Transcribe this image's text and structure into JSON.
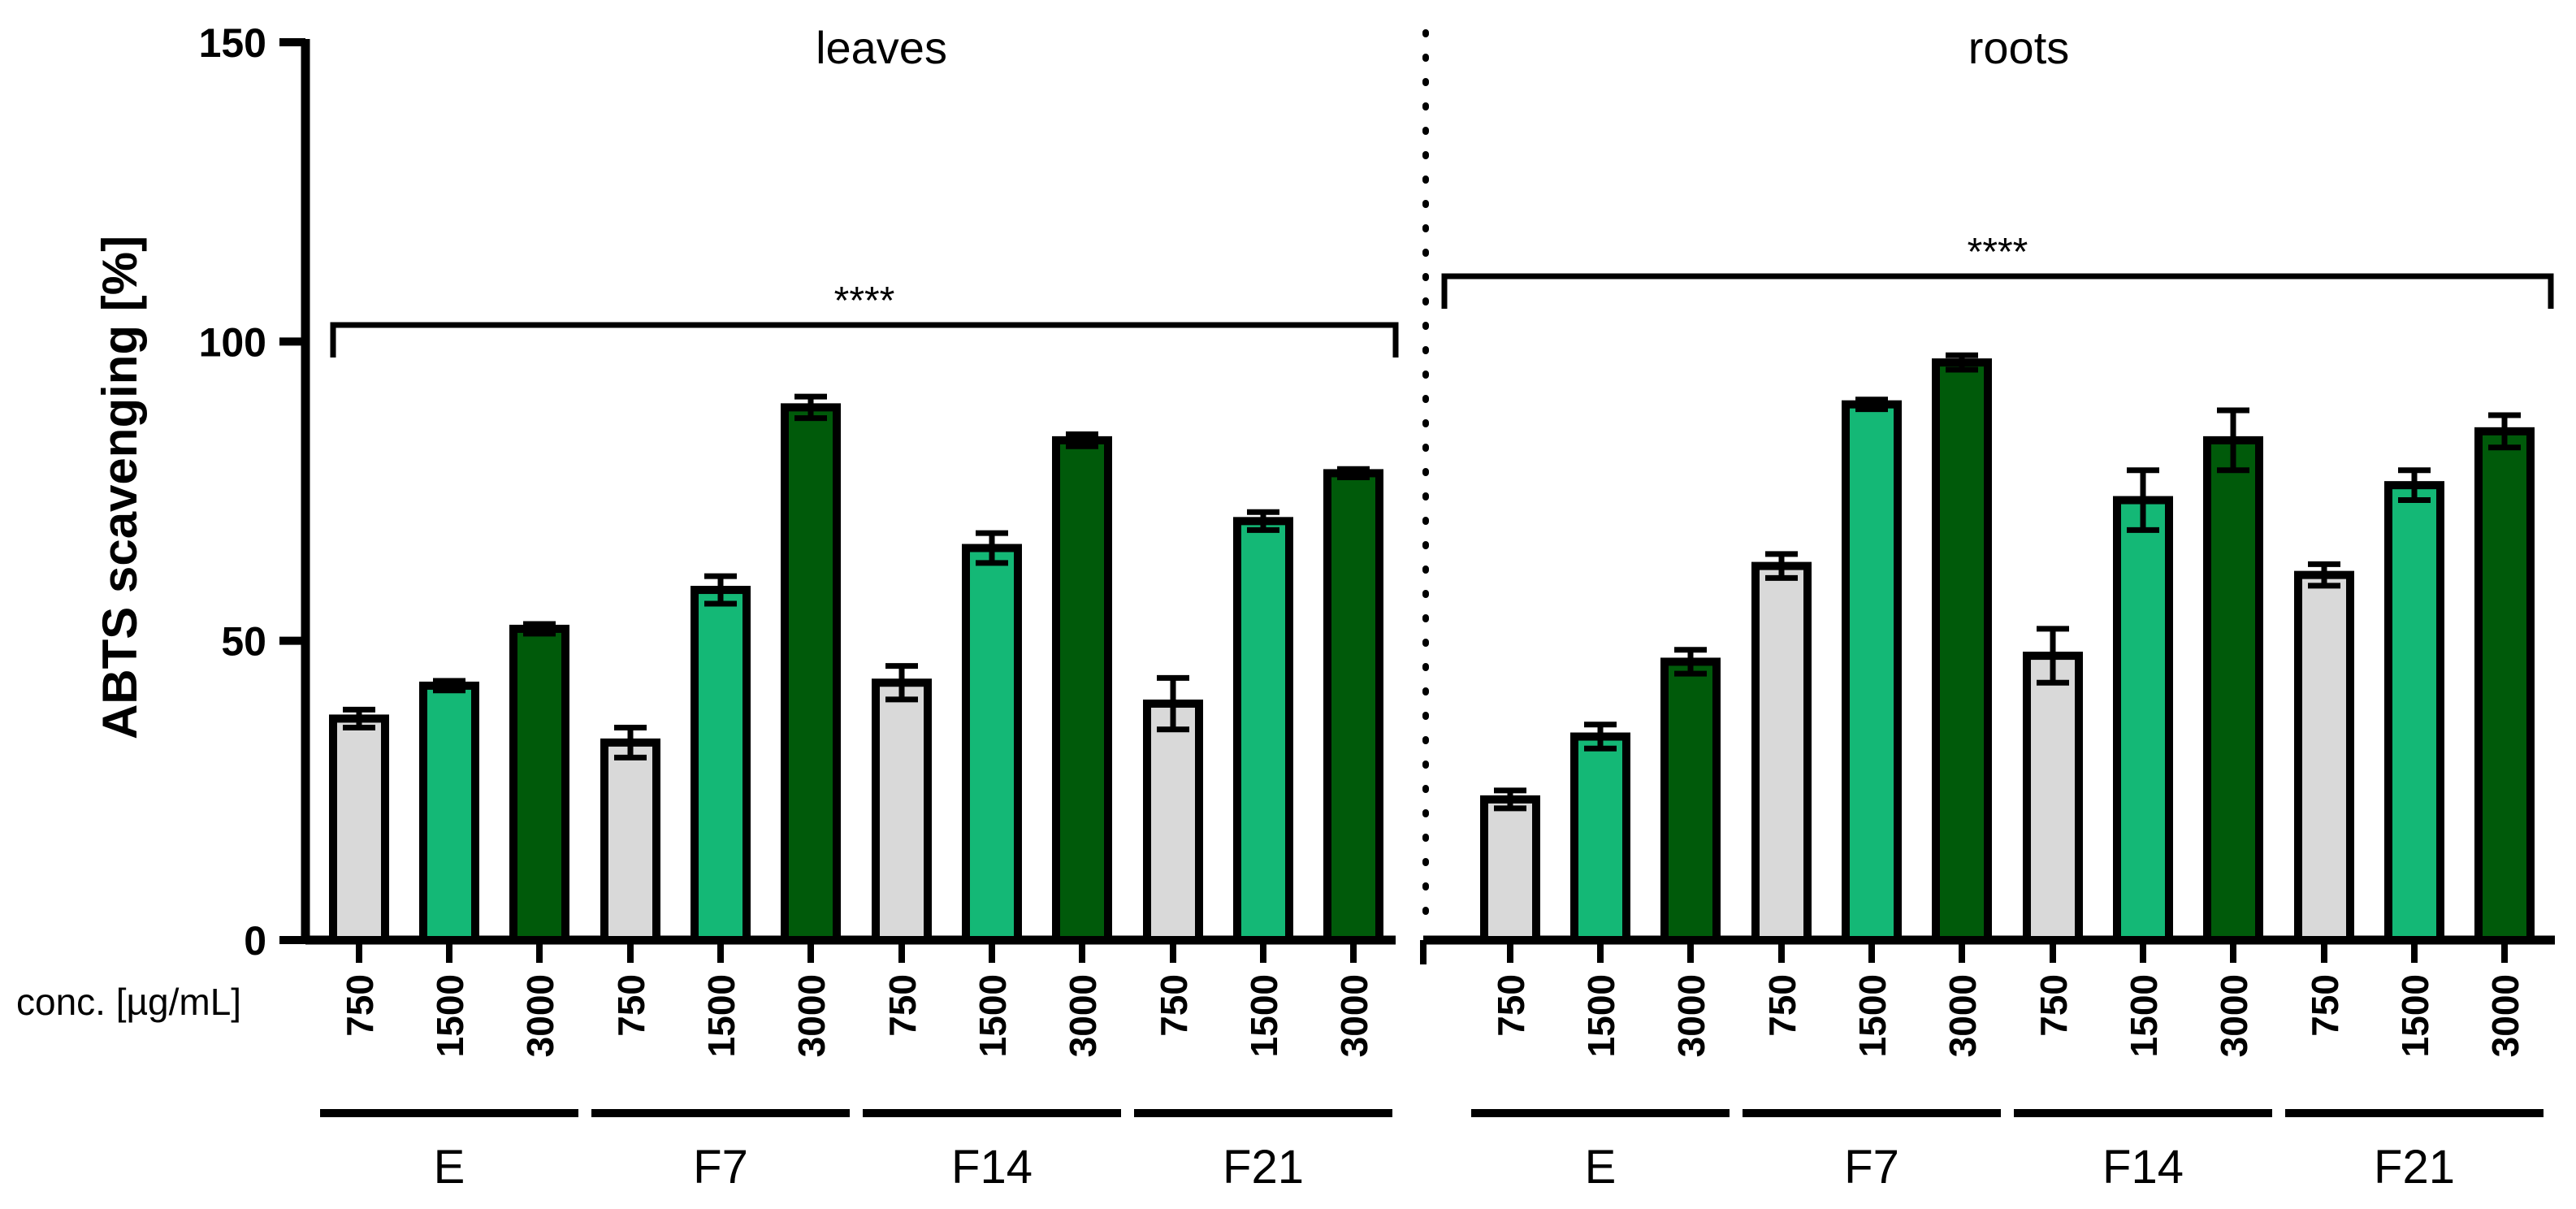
{
  "chart_data": {
    "type": "bar",
    "ylabel": "ABTS scavenging [%]",
    "ylim": [
      0,
      150
    ],
    "yticks": [
      "0",
      "50",
      "100",
      "150"
    ],
    "x_axis_note": "conc. [µg/mL]",
    "concentrations": [
      "750",
      "1500",
      "3000"
    ],
    "series_colors": {
      "750": "#d9d9d9",
      "1500": "#14b876",
      "3000": "#005a0a"
    },
    "panels": [
      {
        "title": "leaves",
        "significance": "****",
        "groups": [
          {
            "name": "E",
            "values": [
              37,
              42.5,
              52
            ],
            "errors": [
              1.5,
              0.8,
              0.8
            ]
          },
          {
            "name": "F7",
            "values": [
              33,
              58.5,
              89
            ],
            "errors": [
              2.5,
              2.3,
              1.8
            ]
          },
          {
            "name": "F14",
            "values": [
              43,
              65.5,
              83.5
            ],
            "errors": [
              2.8,
              2.5,
              1.0
            ]
          },
          {
            "name": "F21",
            "values": [
              39.5,
              70,
              78
            ],
            "errors": [
              4.3,
              1.5,
              0.7
            ]
          }
        ]
      },
      {
        "title": "roots",
        "significance": "****",
        "groups": [
          {
            "name": "E",
            "values": [
              23.5,
              34,
              46.5
            ],
            "errors": [
              1.5,
              2.0,
              2.0
            ]
          },
          {
            "name": "F7",
            "values": [
              62.5,
              89.5,
              96.5
            ],
            "errors": [
              2.0,
              0.8,
              1.2
            ]
          },
          {
            "name": "F14",
            "values": [
              47.5,
              73.5,
              83.5
            ],
            "errors": [
              4.5,
              5.0,
              5.0
            ]
          },
          {
            "name": "F21",
            "values": [
              61,
              76,
              85
            ],
            "errors": [
              1.8,
              2.5,
              2.7
            ]
          }
        ]
      }
    ]
  }
}
